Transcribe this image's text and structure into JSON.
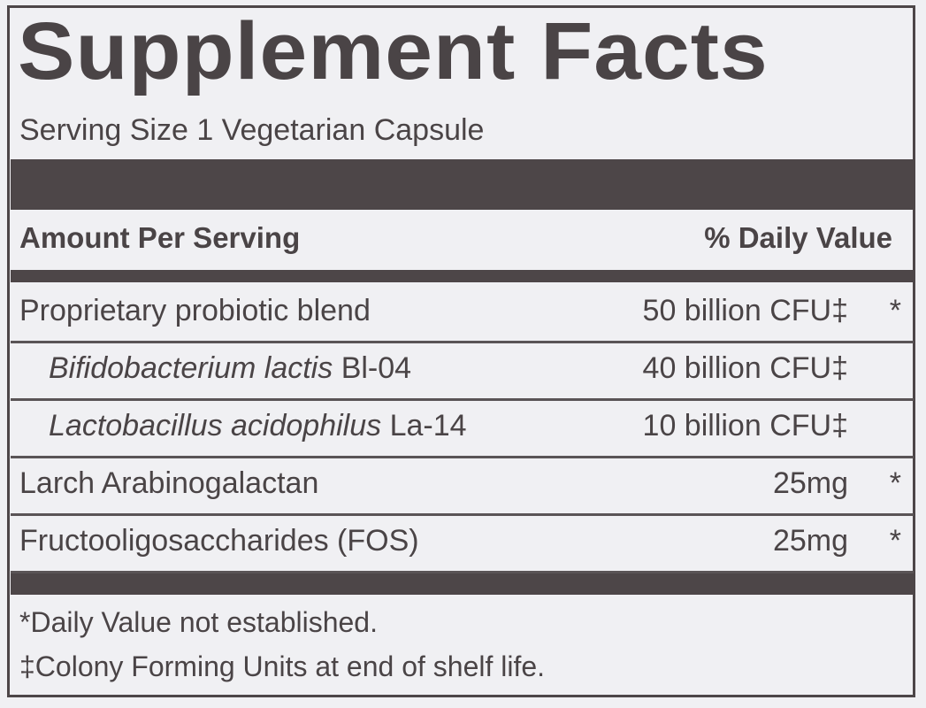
{
  "title": "Supplement Facts",
  "serving_size": "Serving Size 1 Vegetarian Capsule",
  "header": {
    "left": "Amount Per Serving",
    "right": "% Daily Value"
  },
  "rows": [
    {
      "name": "Proprietary probiotic blend",
      "amount": "50 billion CFU‡",
      "dv": "*"
    },
    {
      "italic": "Bifidobacterium lactis",
      "name": "Bl-04",
      "amount": "40 billion CFU‡"
    },
    {
      "italic": "Lactobacillus acidophilus",
      "name": "La-14",
      "amount": "10 billion CFU‡"
    },
    {
      "name": "Larch Arabinogalactan",
      "amount": "25mg",
      "dv": "*"
    },
    {
      "name": "Fructooligosaccharides (FOS)",
      "amount": "25mg",
      "dv": "*"
    }
  ],
  "footnotes": [
    "*Daily Value not established.",
    "‡Colony Forming Units at end of shelf life."
  ]
}
